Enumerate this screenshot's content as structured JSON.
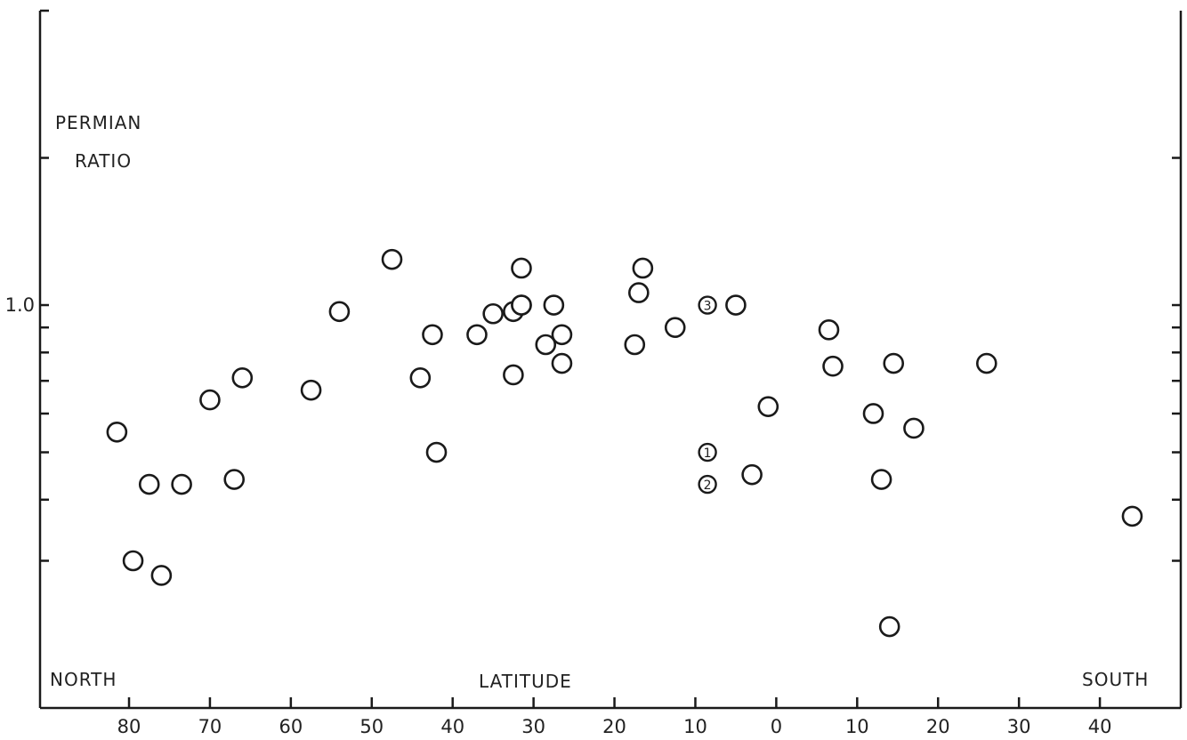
{
  "chart_data": {
    "type": "scatter",
    "title": "",
    "ylabel": "PERMIAN RATIO",
    "ylabel_lines": [
      "PERMIAN",
      "RATIO"
    ],
    "xlabel": "LATITUDE",
    "annotations": {
      "left": "NORTH",
      "right": "SOUTH"
    },
    "x_axis_direction": "North latitudes on the left (decreasing toward 0), south latitudes on the right",
    "x_ticks": [
      {
        "value": -80,
        "label": "80"
      },
      {
        "value": -70,
        "label": "70"
      },
      {
        "value": -60,
        "label": "60"
      },
      {
        "value": -50,
        "label": "50"
      },
      {
        "value": -40,
        "label": "40"
      },
      {
        "value": -30,
        "label": "30"
      },
      {
        "value": -20,
        "label": "20"
      },
      {
        "value": -10,
        "label": "10"
      },
      {
        "value": 0,
        "label": "0"
      },
      {
        "value": 10,
        "label": "10"
      },
      {
        "value": 20,
        "label": "20"
      },
      {
        "value": 30,
        "label": "30"
      },
      {
        "value": 40,
        "label": "40"
      }
    ],
    "xlim": [
      -91,
      50
    ],
    "y_tick_values": [
      0.3,
      0.4,
      0.5,
      0.6,
      0.7,
      0.8,
      0.9,
      1.0,
      2.0
    ],
    "y_tick_labels": [
      {
        "value": 1.0,
        "label": "1.0"
      }
    ],
    "ylim": [
      0.15,
      4.0
    ],
    "y_scale": "log",
    "grid": false,
    "points": [
      {
        "x": -81.5,
        "y": 0.55
      },
      {
        "x": -79.5,
        "y": 0.3
      },
      {
        "x": -77.5,
        "y": 0.43
      },
      {
        "x": -76,
        "y": 0.28
      },
      {
        "x": -73.5,
        "y": 0.43
      },
      {
        "x": -70,
        "y": 0.64
      },
      {
        "x": -67,
        "y": 0.44
      },
      {
        "x": -66,
        "y": 0.71
      },
      {
        "x": -57.5,
        "y": 0.67
      },
      {
        "x": -54,
        "y": 0.97
      },
      {
        "x": -47.5,
        "y": 1.24
      },
      {
        "x": -44,
        "y": 0.71
      },
      {
        "x": -42.5,
        "y": 0.87
      },
      {
        "x": -42,
        "y": 0.5
      },
      {
        "x": -37,
        "y": 0.87
      },
      {
        "x": -35,
        "y": 0.96
      },
      {
        "x": -32.5,
        "y": 0.97
      },
      {
        "x": -32.5,
        "y": 0.72
      },
      {
        "x": -31.5,
        "y": 1.19
      },
      {
        "x": -31.5,
        "y": 1.0
      },
      {
        "x": -31.5,
        "y": 1.0
      },
      {
        "x": -28.5,
        "y": 0.83
      },
      {
        "x": -27.5,
        "y": 1.0
      },
      {
        "x": -26.5,
        "y": 0.87
      },
      {
        "x": -26.5,
        "y": 0.76
      },
      {
        "x": -17.5,
        "y": 0.83
      },
      {
        "x": -17,
        "y": 1.06
      },
      {
        "x": -16.5,
        "y": 1.19
      },
      {
        "x": -12.5,
        "y": 0.9
      },
      {
        "x": -5,
        "y": 1.0
      },
      {
        "x": -3,
        "y": 0.45
      },
      {
        "x": -1,
        "y": 0.62
      },
      {
        "x": 6.5,
        "y": 0.89
      },
      {
        "x": 7,
        "y": 0.75
      },
      {
        "x": 12,
        "y": 0.6
      },
      {
        "x": 13,
        "y": 0.44
      },
      {
        "x": 14,
        "y": 0.22
      },
      {
        "x": 14.5,
        "y": 0.76
      },
      {
        "x": 17,
        "y": 0.56
      },
      {
        "x": 26,
        "y": 0.76
      },
      {
        "x": 44,
        "y": 0.37
      }
    ],
    "numbered_points": [
      {
        "x": -8.5,
        "y": 1.0,
        "label": "3"
      },
      {
        "x": -8.5,
        "y": 0.5,
        "label": "1"
      },
      {
        "x": -8.5,
        "y": 0.43,
        "label": "2"
      }
    ]
  }
}
